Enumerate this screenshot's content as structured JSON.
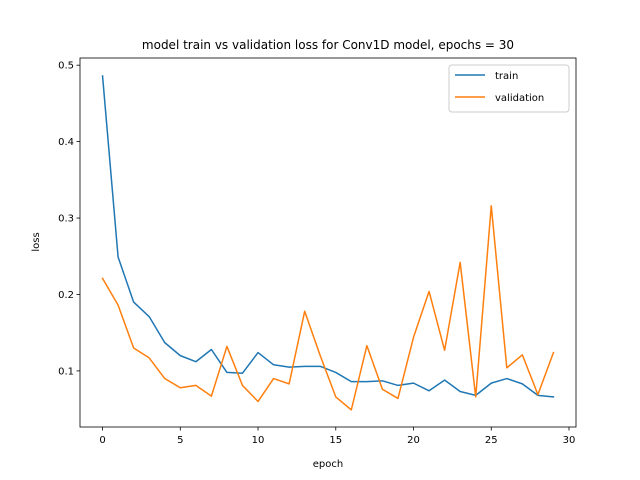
{
  "chart_data": {
    "type": "line",
    "title": "model train vs validation loss for Conv1D model, epochs = 30",
    "xlabel": "epoch",
    "ylabel": "loss",
    "xlim": [
      -1.45,
      30.45
    ],
    "ylim": [
      0.0266,
      0.5094
    ],
    "xticks": [
      0,
      5,
      10,
      15,
      20,
      25,
      30
    ],
    "yticks": [
      0.1,
      0.2,
      0.3,
      0.4,
      0.5
    ],
    "xtick_labels": [
      "0",
      "5",
      "10",
      "15",
      "20",
      "25",
      "30"
    ],
    "ytick_labels": [
      "0.1",
      "0.2",
      "0.3",
      "0.4",
      "0.5"
    ],
    "grid": false,
    "legend": "upper right",
    "x": [
      0,
      1,
      2,
      3,
      4,
      5,
      6,
      7,
      8,
      9,
      10,
      11,
      12,
      13,
      14,
      15,
      16,
      17,
      18,
      19,
      20,
      21,
      22,
      23,
      24,
      25,
      26,
      27,
      28,
      29
    ],
    "series": [
      {
        "name": "train",
        "color": "#1f77b4",
        "values": [
          0.486,
          0.249,
          0.19,
          0.171,
          0.137,
          0.12,
          0.112,
          0.128,
          0.098,
          0.097,
          0.124,
          0.108,
          0.105,
          0.106,
          0.106,
          0.098,
          0.086,
          0.086,
          0.087,
          0.081,
          0.084,
          0.074,
          0.088,
          0.073,
          0.068,
          0.084,
          0.09,
          0.083,
          0.068,
          0.066
        ]
      },
      {
        "name": "validation",
        "color": "#ff7f0e",
        "values": [
          0.221,
          0.186,
          0.13,
          0.117,
          0.09,
          0.078,
          0.081,
          0.067,
          0.132,
          0.081,
          0.06,
          0.09,
          0.083,
          0.178,
          0.12,
          0.066,
          0.049,
          0.133,
          0.076,
          0.064,
          0.144,
          0.204,
          0.127,
          0.242,
          0.066,
          0.316,
          0.104,
          0.121,
          0.069,
          0.124
        ]
      }
    ]
  }
}
